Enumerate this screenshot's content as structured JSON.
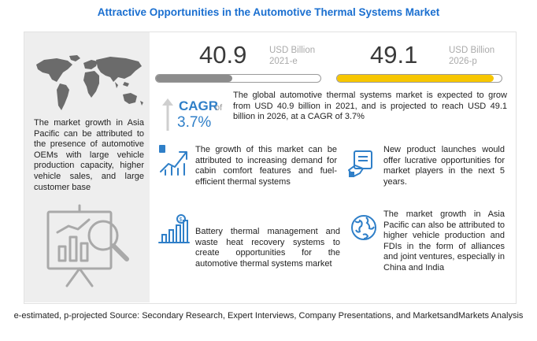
{
  "title": "Attractive Opportunities in the Automotive Thermal Systems Market",
  "market_2021": {
    "value": "40.9",
    "unit": "USD Billion",
    "year": "2021-e",
    "bar_color": "#8c8c8c"
  },
  "market_2026": {
    "value": "49.1",
    "unit": "USD Billion",
    "year": "2026-p",
    "bar_color": "#f7c600"
  },
  "cagr": {
    "label": "CAGR",
    "of": "of",
    "value": "3.7%",
    "color": "#2f7fc8"
  },
  "summary": "The global automotive thermal systems market is expected to grow from USD 40.9 billion in 2021, and is projected to reach USD 49.1 billion in 2026, at a CAGR of 3.7%",
  "left_text": "The market growth in Asia Pacific can be attributed to the presence of automotive OEMs with large vehicle production capacity, higher vehicle sales, and large customer base",
  "points": {
    "growth": "The growth of this market can be attributed to increasing demand for cabin comfort features and fuel-efficient thermal systems",
    "battery": "Battery thermal management and waste heat recovery systems to create opportunities for the automotive thermal systems market",
    "launches": "New product launches would offer lucrative opportunities for market players in the next 5 years.",
    "asia": "The market growth in Asia Pacific can also be attributed to higher vehicle production and FDIs in the form of alliances and joint ventures, especially in China and India"
  },
  "icons": {
    "map": "world-map-icon",
    "analysis": "chart-magnifier-icon",
    "growth": "upward-trend-icon",
    "battery": "bar-chart-dollar-icon",
    "launches": "product-launch-icon",
    "asia": "globe-icon"
  },
  "footnote": "e-estimated, p-projected Source: Secondary Research, Expert Interviews, Company Presentations, and MarketsandMarkets Analysis"
}
